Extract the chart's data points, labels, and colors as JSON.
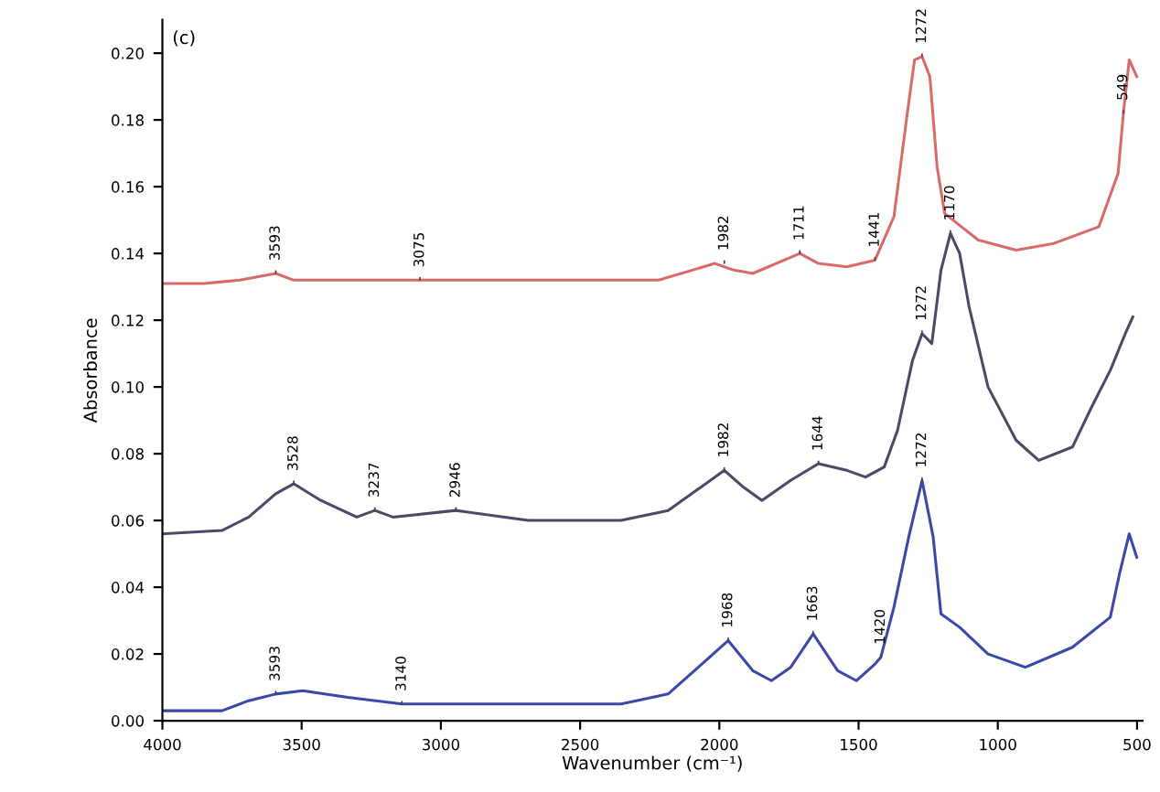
{
  "chart_data": {
    "type": "line",
    "xlabel": "Wavenumber (cm⁻¹)",
    "ylabel": "Absorbance",
    "xlim": [
      4000,
      480
    ],
    "xticks": [
      4000,
      3500,
      3000,
      2500,
      2000,
      1500,
      1000,
      500
    ],
    "ylim": [
      0,
      0.21
    ],
    "yticks": [
      {
        "value": 0,
        "label": "0.00"
      },
      {
        "value": 0.02,
        "label": "0.02"
      },
      {
        "value": 0.04,
        "label": "0.04"
      },
      {
        "value": 0.06,
        "label": "0.06"
      },
      {
        "value": 0.08,
        "label": "0.08"
      },
      {
        "value": 0.1,
        "label": "0.10"
      },
      {
        "value": 0.12,
        "label": "0.12"
      },
      {
        "value": 0.14,
        "label": "0.14"
      },
      {
        "value": 0.16,
        "label": "0.16"
      },
      {
        "value": 0.18,
        "label": "0.18"
      },
      {
        "value": 0.2,
        "label": "0.20"
      }
    ],
    "grid": false,
    "marker": "none",
    "line_style": "solid",
    "series": [
      {
        "color": "#d96a6a",
        "x": [
          4000,
          3851,
          3722,
          3593,
          3528,
          3334,
          3075,
          2687,
          2218,
          2016,
          1948,
          1880,
          1711,
          1644,
          1542,
          1441,
          1373,
          1325,
          1299,
          1272,
          1244,
          1218,
          1191,
          1070,
          934,
          799,
          637,
          568,
          549,
          528,
          501
        ],
        "values": [
          0.131,
          0.131,
          0.132,
          0.134,
          0.132,
          0.132,
          0.132,
          0.132,
          0.132,
          0.137,
          0.135,
          0.134,
          0.14,
          0.137,
          0.136,
          0.138,
          0.151,
          0.182,
          0.198,
          0.199,
          0.193,
          0.166,
          0.152,
          0.144,
          0.141,
          0.143,
          0.148,
          0.164,
          0.182,
          0.198,
          0.193
        ]
      },
      {
        "color": "#4a4a66",
        "x": [
          4000,
          3786,
          3690,
          3593,
          3528,
          3431,
          3302,
          3237,
          3172,
          2946,
          2687,
          2353,
          2184,
          2049,
          1982,
          1914,
          1847,
          1744,
          1644,
          1542,
          1475,
          1408,
          1360,
          1306,
          1272,
          1237,
          1204,
          1170,
          1137,
          1103,
          1035,
          934,
          853,
          732,
          663,
          596,
          542,
          515
        ],
        "values": [
          0.056,
          0.057,
          0.061,
          0.068,
          0.071,
          0.066,
          0.061,
          0.063,
          0.061,
          0.063,
          0.06,
          0.06,
          0.063,
          0.071,
          0.075,
          0.07,
          0.066,
          0.072,
          0.077,
          0.075,
          0.073,
          0.076,
          0.087,
          0.108,
          0.116,
          0.113,
          0.135,
          0.146,
          0.14,
          0.124,
          0.1,
          0.084,
          0.078,
          0.082,
          0.094,
          0.105,
          0.116,
          0.121
        ]
      },
      {
        "color": "#3a48a8",
        "x": [
          4000,
          3786,
          3690,
          3593,
          3496,
          3334,
          3140,
          2946,
          2687,
          2353,
          2184,
          2049,
          1968,
          1880,
          1813,
          1744,
          1663,
          1575,
          1508,
          1441,
          1420,
          1373,
          1320,
          1272,
          1232,
          1204,
          1137,
          1035,
          901,
          732,
          596,
          563,
          528,
          501
        ],
        "values": [
          0.003,
          0.003,
          0.006,
          0.008,
          0.009,
          0.007,
          0.005,
          0.005,
          0.005,
          0.005,
          0.008,
          0.018,
          0.024,
          0.015,
          0.012,
          0.016,
          0.026,
          0.015,
          0.012,
          0.017,
          0.019,
          0.034,
          0.055,
          0.072,
          0.055,
          0.032,
          0.028,
          0.02,
          0.016,
          0.022,
          0.031,
          0.044,
          0.056,
          0.049
        ]
      }
    ],
    "annotations": [
      "(c)",
      {
        "text": "3593",
        "x": 3593,
        "y": 0.134
      },
      {
        "text": "3075",
        "x": 3075,
        "y": 0.132
      },
      {
        "text": "1982",
        "x": 1982,
        "y": 0.137
      },
      {
        "text": "1711",
        "x": 1711,
        "y": 0.14
      },
      {
        "text": "1441",
        "x": 1441,
        "y": 0.138
      },
      {
        "text": "1272",
        "x": 1272,
        "y": 0.199
      },
      {
        "text": "549",
        "x": 549,
        "y": 0.182
      },
      {
        "text": "3528",
        "x": 3528,
        "y": 0.071
      },
      {
        "text": "3237",
        "x": 3237,
        "y": 0.063
      },
      {
        "text": "2946",
        "x": 2946,
        "y": 0.063
      },
      {
        "text": "1982",
        "x": 1982,
        "y": 0.075
      },
      {
        "text": "1644",
        "x": 1644,
        "y": 0.077
      },
      {
        "text": "1272",
        "x": 1272,
        "y": 0.116
      },
      {
        "text": "1170",
        "x": 1170,
        "y": 0.146
      },
      {
        "text": "3593",
        "x": 3593,
        "y": 0.008
      },
      {
        "text": "3140",
        "x": 3140,
        "y": 0.005
      },
      {
        "text": "1968",
        "x": 1968,
        "y": 0.024
      },
      {
        "text": "1663",
        "x": 1663,
        "y": 0.026
      },
      {
        "text": "1420",
        "x": 1420,
        "y": 0.019
      },
      {
        "text": "1272",
        "x": 1272,
        "y": 0.072
      }
    ]
  }
}
